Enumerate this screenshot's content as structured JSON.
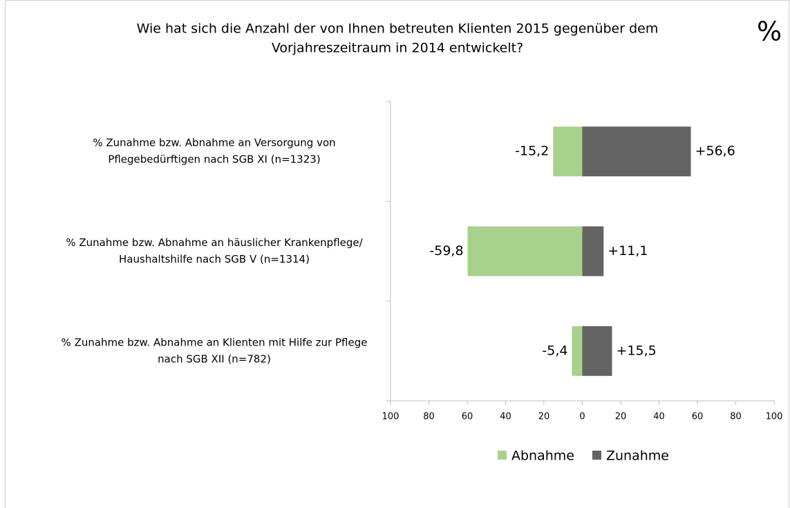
{
  "chart_data": {
    "type": "bar",
    "orientation": "horizontal",
    "title": [
      "Wie hat sich die Anzahl der von Ihnen betreuten Klienten 2015 gegenüber dem",
      "Vorjahreszeitraum in 2014 entwickelt?"
    ],
    "annotation": "%",
    "categories": [
      [
        "% Zunahme bzw. Abnahme an Versorgung von",
        "Pflegebedürftigen nach SGB XI (n=1323)"
      ],
      [
        "% Zunahme bzw. Abnahme an häuslicher Krankenpflege/",
        "Haushaltshilfe nach SGB V (n=1314)"
      ],
      [
        "% Zunahme bzw. Abnahme an Klienten mit Hilfe zur Pflege",
        "nach SGB XII (n=782)"
      ]
    ],
    "series": [
      {
        "name": "Abnahme",
        "color": "#a9d18e",
        "values": [
          -15.2,
          -59.8,
          -5.4
        ],
        "value_labels": [
          "-15,2",
          "-59,8",
          "-5,4"
        ]
      },
      {
        "name": "Zunahme",
        "color": "#636363",
        "values": [
          56.6,
          11.1,
          15.5
        ],
        "value_labels": [
          "+56,6",
          "+11,1",
          "+15,5"
        ]
      }
    ],
    "xlim": [
      -100,
      100
    ],
    "xticks": [
      {
        "value": -100,
        "label": "100"
      },
      {
        "value": -80,
        "label": "80"
      },
      {
        "value": -60,
        "label": "60"
      },
      {
        "value": -40,
        "label": "40"
      },
      {
        "value": -20,
        "label": "20"
      },
      0,
      20,
      40,
      60,
      80,
      100
    ],
    "legend": "bottom"
  }
}
